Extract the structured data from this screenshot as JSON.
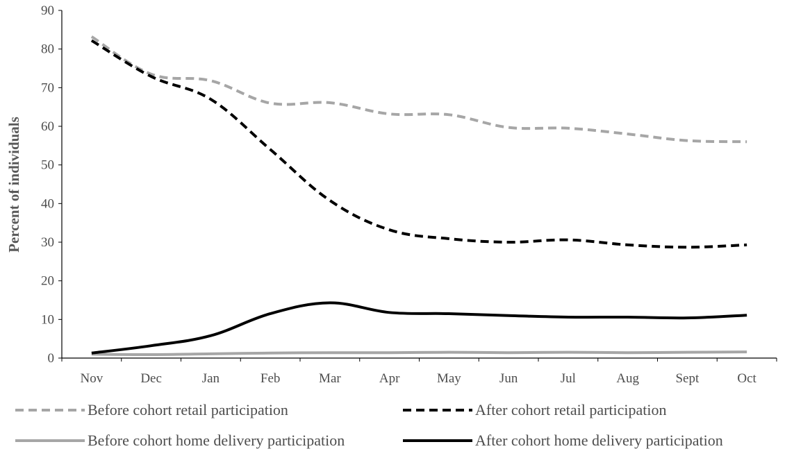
{
  "chart_data": {
    "type": "line",
    "title": "",
    "xlabel": "",
    "ylabel": "Percent of individuals",
    "ylim": [
      0,
      90
    ],
    "yticks": [
      0,
      10,
      20,
      30,
      40,
      50,
      60,
      70,
      80,
      90
    ],
    "categories": [
      "Nov",
      "Dec",
      "Jan",
      "Feb",
      "Mar",
      "Apr",
      "May",
      "Jun",
      "Jul",
      "Aug",
      "Sept",
      "Oct"
    ],
    "grid": false,
    "legend_placement": "bottom",
    "series": [
      {
        "name": "Before cohort retail participation",
        "values": [
          83.2,
          73.5,
          71.8,
          66.0,
          66.1,
          63.2,
          63.0,
          59.7,
          59.5,
          58.0,
          56.3,
          56.0
        ],
        "color": "#a6a6a6",
        "style": "dashed"
      },
      {
        "name": "After cohort retail participation",
        "values": [
          82.2,
          72.9,
          67.0,
          54.0,
          40.8,
          33.2,
          30.9,
          30.0,
          30.6,
          29.3,
          28.7,
          29.3
        ],
        "color": "#000000",
        "style": "dashed"
      },
      {
        "name": "Before cohort home delivery participation",
        "values": [
          1.0,
          0.9,
          1.1,
          1.3,
          1.4,
          1.4,
          1.5,
          1.4,
          1.5,
          1.4,
          1.5,
          1.6
        ],
        "color": "#a6a6a6",
        "style": "solid"
      },
      {
        "name": "After cohort home delivery participation",
        "values": [
          1.3,
          3.2,
          5.8,
          11.5,
          14.3,
          11.8,
          11.5,
          11.0,
          10.6,
          10.6,
          10.4,
          11.1
        ],
        "color": "#000000",
        "style": "solid"
      }
    ]
  }
}
